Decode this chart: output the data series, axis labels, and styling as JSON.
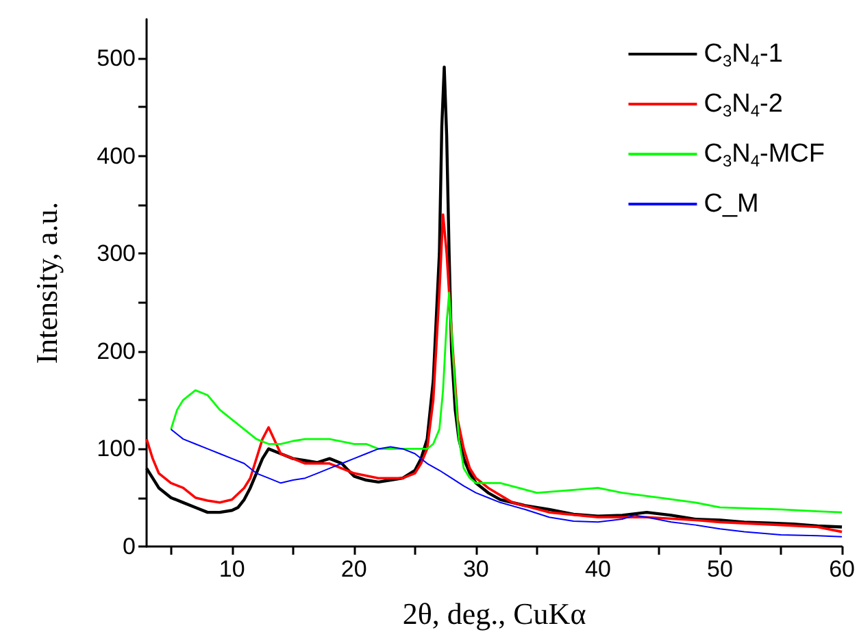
{
  "chart_data": {
    "type": "line",
    "xlabel": "2θ, deg., CuKα",
    "ylabel": "Intensity, a.u.",
    "xlim": [
      3,
      60
    ],
    "ylim": [
      0,
      540
    ],
    "xticks": [
      {
        "value": 5,
        "label": null
      },
      10,
      {
        "value": 15,
        "label": null
      },
      20,
      {
        "value": 25,
        "label": null
      },
      30,
      {
        "value": 35,
        "label": null
      },
      40,
      {
        "value": 45,
        "label": null
      },
      50,
      {
        "value": 55,
        "label": null
      },
      60
    ],
    "yticks": [
      0,
      {
        "value": 50,
        "label": null
      },
      100,
      {
        "value": 150,
        "label": null
      },
      200,
      {
        "value": 250,
        "label": null
      },
      300,
      {
        "value": 350,
        "label": null
      },
      400,
      {
        "value": 450,
        "label": null
      },
      500
    ],
    "grid": false,
    "legend": "top right",
    "marker": "none",
    "line_style": "solid",
    "series": [
      {
        "name": "C$_{3}$N$_{4}$-1",
        "color": "#000000",
        "x": [
          3,
          3.5,
          4,
          5,
          6,
          7,
          8,
          9,
          10,
          10.5,
          11,
          11.5,
          12,
          12.5,
          13,
          14,
          15,
          16,
          17,
          18,
          19,
          20,
          21,
          22,
          23,
          24,
          25,
          25.5,
          26,
          26.5,
          27,
          27.2,
          27.4,
          27.6,
          27.8,
          28,
          28.3,
          28.6,
          29,
          29.5,
          30,
          31,
          32,
          34,
          36,
          38,
          40,
          42,
          44,
          46,
          48,
          50,
          52,
          54,
          56,
          58,
          60
        ],
        "values": [
          80,
          70,
          60,
          50,
          45,
          40,
          35,
          35,
          37,
          40,
          48,
          60,
          75,
          90,
          100,
          95,
          90,
          88,
          86,
          90,
          85,
          72,
          68,
          66,
          68,
          70,
          78,
          90,
          110,
          170,
          300,
          430,
          491,
          420,
          300,
          200,
          140,
          110,
          90,
          75,
          65,
          55,
          48,
          42,
          38,
          33,
          31,
          32,
          35,
          32,
          28,
          27,
          25,
          24,
          23,
          21,
          20
        ]
      },
      {
        "name": "C$_{3}$N$_{4}$-2",
        "color": "#ff0000",
        "x": [
          3,
          3.5,
          4,
          5,
          6,
          7,
          8,
          9,
          10,
          11,
          11.5,
          12,
          12.5,
          13,
          14,
          15,
          16,
          18,
          20,
          22,
          24,
          25,
          25.5,
          26,
          26.5,
          27,
          27.3,
          27.6,
          28,
          28.5,
          29,
          29.5,
          30,
          31,
          33,
          36,
          40,
          44,
          48,
          50,
          55,
          58,
          60
        ],
        "values": [
          110,
          90,
          75,
          65,
          60,
          50,
          47,
          45,
          48,
          60,
          70,
          90,
          110,
          122,
          95,
          90,
          85,
          85,
          75,
          70,
          70,
          75,
          85,
          100,
          150,
          260,
          340,
          300,
          220,
          130,
          100,
          80,
          70,
          60,
          45,
          35,
          30,
          30,
          27,
          25,
          22,
          20,
          15
        ]
      },
      {
        "name": "C$_{3}$N$_{4}$-MCF",
        "color": "#00ff00",
        "x": [
          5,
          5.5,
          6,
          7,
          8,
          9,
          10,
          11,
          12,
          13,
          14,
          15,
          16,
          18,
          20,
          21,
          22,
          24,
          25,
          26,
          26.5,
          27,
          27.3,
          27.6,
          27.8,
          28,
          28.3,
          28.6,
          29,
          29.5,
          30,
          32,
          35,
          38,
          40,
          42,
          45,
          48,
          50,
          55,
          58,
          60
        ],
        "values": [
          120,
          140,
          150,
          160,
          155,
          140,
          130,
          120,
          110,
          105,
          105,
          108,
          110,
          110,
          105,
          105,
          100,
          100,
          100,
          100,
          105,
          120,
          160,
          230,
          260,
          220,
          160,
          110,
          80,
          70,
          65,
          65,
          55,
          58,
          60,
          55,
          50,
          45,
          40,
          38,
          36,
          35
        ]
      },
      {
        "name": "C_M",
        "color": "#0000ff",
        "x": [
          5,
          5.5,
          6,
          7,
          8,
          9,
          10,
          11,
          12,
          13,
          14,
          15,
          16,
          17,
          18,
          19,
          20,
          21,
          22,
          23,
          24,
          25,
          26,
          27,
          28,
          29,
          30,
          31,
          32,
          34,
          36,
          38,
          40,
          42,
          43,
          44,
          46,
          48,
          50,
          52,
          55,
          58,
          60
        ],
        "values": [
          120,
          115,
          110,
          105,
          100,
          95,
          90,
          85,
          75,
          70,
          65,
          68,
          70,
          75,
          80,
          85,
          90,
          95,
          100,
          102,
          100,
          95,
          85,
          78,
          70,
          62,
          55,
          50,
          45,
          38,
          30,
          26,
          25,
          28,
          32,
          30,
          25,
          22,
          18,
          15,
          12,
          11,
          10
        ]
      }
    ]
  }
}
